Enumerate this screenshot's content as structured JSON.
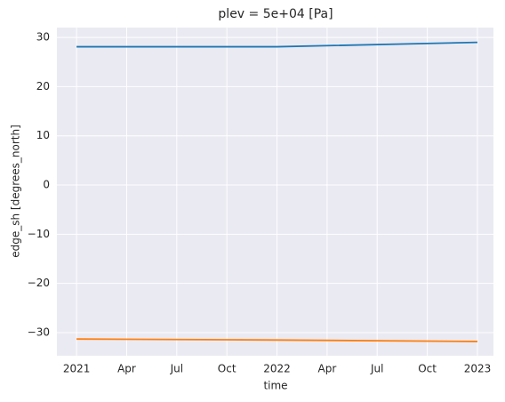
{
  "chart_data": {
    "type": "line",
    "title": "plev = 5e+04 [Pa]",
    "x_label": "time",
    "y_label": "edge_sh [degrees_north]",
    "x": [
      2021,
      2022,
      2023
    ],
    "series": [
      {
        "color": "#1f77b4",
        "values": [
          28.1,
          28.1,
          29.0
        ]
      },
      {
        "color": "#ff7f0e",
        "values": [
          -31.3,
          -31.5,
          -31.8
        ]
      }
    ],
    "xlim": [
      2020.902,
      2023.08
    ],
    "xticks": [
      {
        "value": 2021,
        "label": "2021"
      },
      {
        "value": 2021.25,
        "label": "Apr"
      },
      {
        "value": 2021.5,
        "label": "Jul"
      },
      {
        "value": 2021.75,
        "label": "Oct"
      },
      {
        "value": 2022,
        "label": "2022"
      },
      {
        "value": 2022.25,
        "label": "Apr"
      },
      {
        "value": 2022.5,
        "label": "Jul"
      },
      {
        "value": 2022.75,
        "label": "Oct"
      },
      {
        "value": 2023,
        "label": "2023"
      }
    ],
    "ylim": [
      -34.7,
      32.0
    ],
    "yticks": [
      {
        "value": -30,
        "label": "−30"
      },
      {
        "value": -20,
        "label": "−20"
      },
      {
        "value": -10,
        "label": "−10"
      },
      0,
      10,
      20,
      30
    ],
    "grid": true,
    "background": "#eaeaf2"
  }
}
